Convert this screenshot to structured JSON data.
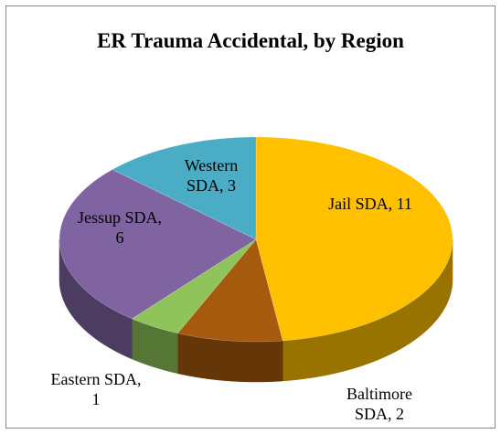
{
  "chart_data": {
    "type": "pie",
    "title": "ER Trauma Accidental, by Region",
    "values": [
      11,
      2,
      1,
      6,
      3
    ],
    "value_labels": [
      "Jail SDA, 11",
      "Baltimore SDA, 2",
      "Eastern SDA, 1",
      "Jessup SDA, 6",
      "Western SDA, 3"
    ],
    "colors": [
      "#FFC000",
      "#A65A0E",
      "#8FC45A",
      "#8064A2",
      "#4BACC6"
    ]
  }
}
